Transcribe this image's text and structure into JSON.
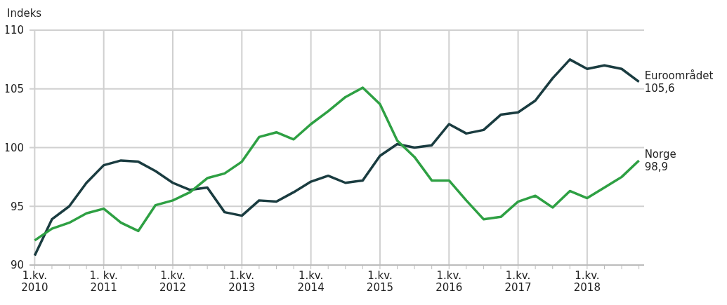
{
  "chart_data": {
    "type": "line",
    "ylabel": "Indeks",
    "categories": [
      "1.kv.\n2010",
      null,
      null,
      null,
      "1. kv.\n2011",
      null,
      null,
      null,
      "1.kv.\n2012",
      null,
      null,
      null,
      "1.kv.\n2013",
      null,
      null,
      null,
      "1.kv.\n2014",
      null,
      null,
      null,
      "1.kv.\n2015",
      null,
      null,
      null,
      "1.kv.\n2016",
      null,
      null,
      null,
      "1.kv.\n2017",
      null,
      null,
      null,
      "1.kv.\n2018",
      null,
      null,
      null
    ],
    "series": [
      {
        "name": "Euroområdet",
        "color": "#1a3c40",
        "values": [
          90.8,
          93.9,
          95.0,
          97.0,
          98.5,
          98.9,
          98.8,
          98.0,
          97.0,
          96.4,
          96.6,
          94.5,
          94.2,
          95.5,
          95.4,
          96.2,
          97.1,
          97.6,
          97.0,
          97.2,
          99.3,
          100.3,
          100.0,
          100.2,
          102.0,
          101.2,
          101.5,
          102.8,
          103.0,
          104.0,
          105.9,
          107.5,
          106.7,
          107.0,
          106.7,
          105.6
        ],
        "value_labels": [
          null,
          null,
          null,
          null,
          null,
          null,
          null,
          null,
          null,
          null,
          null,
          null,
          null,
          null,
          null,
          null,
          null,
          null,
          null,
          null,
          null,
          null,
          null,
          null,
          null,
          null,
          null,
          null,
          null,
          null,
          null,
          null,
          null,
          null,
          null,
          "105,6"
        ]
      },
      {
        "name": "Norge",
        "color": "#2ea043",
        "values": [
          92.1,
          93.1,
          93.6,
          94.4,
          94.8,
          93.6,
          92.9,
          95.1,
          95.5,
          96.2,
          97.4,
          97.8,
          98.8,
          100.9,
          101.3,
          100.7,
          102.0,
          103.1,
          104.3,
          105.1,
          103.7,
          100.6,
          99.2,
          97.2,
          97.2,
          95.5,
          93.9,
          94.1,
          95.4,
          95.9,
          94.9,
          96.3,
          95.7,
          96.6,
          97.5,
          98.9
        ],
        "value_labels": [
          null,
          null,
          null,
          null,
          null,
          null,
          null,
          null,
          null,
          null,
          null,
          null,
          null,
          null,
          null,
          null,
          null,
          null,
          null,
          null,
          null,
          null,
          null,
          null,
          null,
          null,
          null,
          null,
          null,
          null,
          null,
          null,
          null,
          null,
          null,
          "98,9"
        ]
      }
    ],
    "ylim": [
      90,
      110
    ],
    "yticks": [
      90,
      95,
      100,
      105,
      110
    ],
    "grid": true,
    "legend": false,
    "marker": "none",
    "line_style": "solid"
  }
}
